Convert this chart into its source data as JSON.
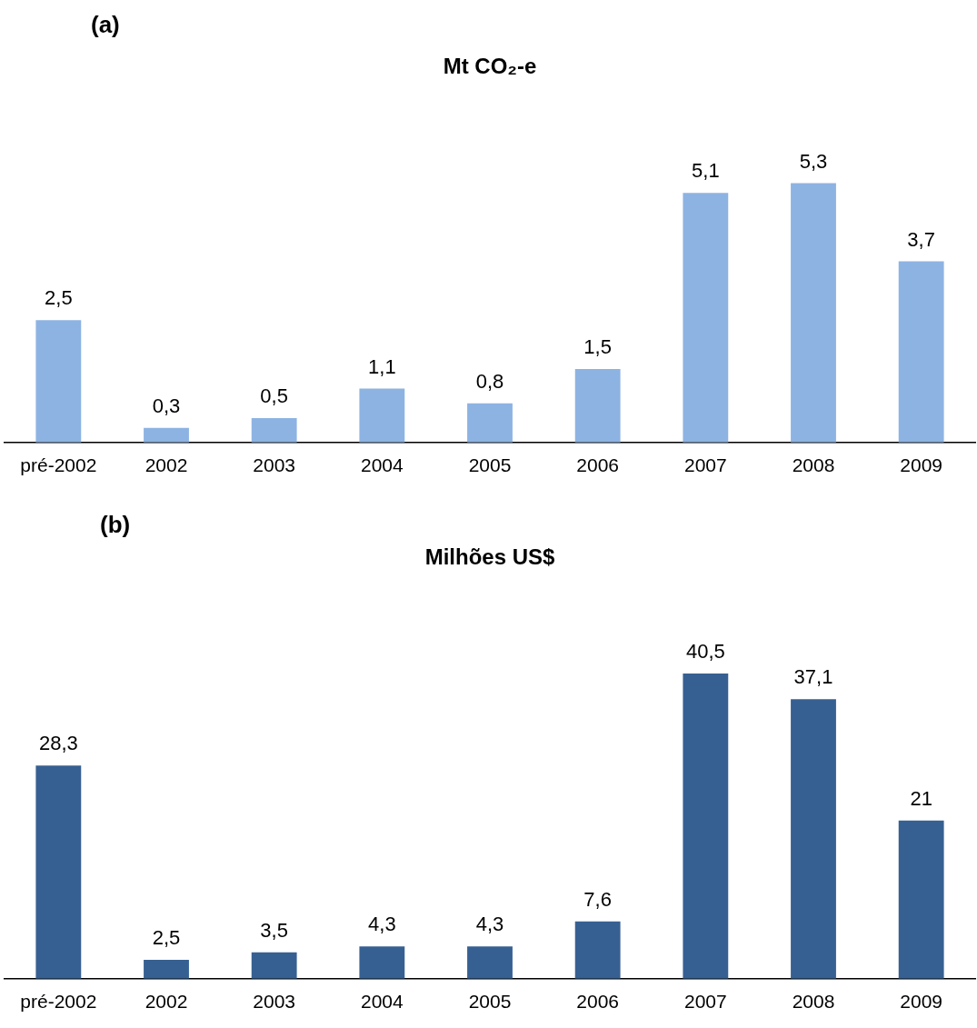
{
  "chart_data": [
    {
      "type": "bar",
      "title": "Mt CO₂-e",
      "annotations": [
        "(a)"
      ],
      "categories": [
        "pré-2002",
        "2002",
        "2003",
        "2004",
        "2005",
        "2006",
        "2007",
        "2008",
        "2009"
      ],
      "values": [
        2.5,
        0.3,
        0.5,
        1.1,
        0.8,
        1.5,
        5.1,
        5.3,
        3.7
      ],
      "color": "#8db3e2",
      "value_labels": [
        "2,5",
        "0,3",
        "0,5",
        "1,1",
        "0,8",
        "1,5",
        "5,1",
        "5,3",
        "3,7"
      ]
    },
    {
      "type": "bar",
      "title": "Milhões US$",
      "annotations": [
        "(b)"
      ],
      "categories": [
        "pré-2002",
        "2002",
        "2003",
        "2004",
        "2005",
        "2006",
        "2007",
        "2008",
        "2009"
      ],
      "values": [
        28.3,
        2.5,
        3.5,
        4.3,
        4.3,
        7.6,
        40.5,
        37.1,
        21
      ],
      "color": "#376092",
      "value_labels": [
        "28,3",
        "2,5",
        "3,5",
        "4,3",
        "4,3",
        "7,6",
        "40,5",
        "37,1",
        "21"
      ]
    }
  ]
}
